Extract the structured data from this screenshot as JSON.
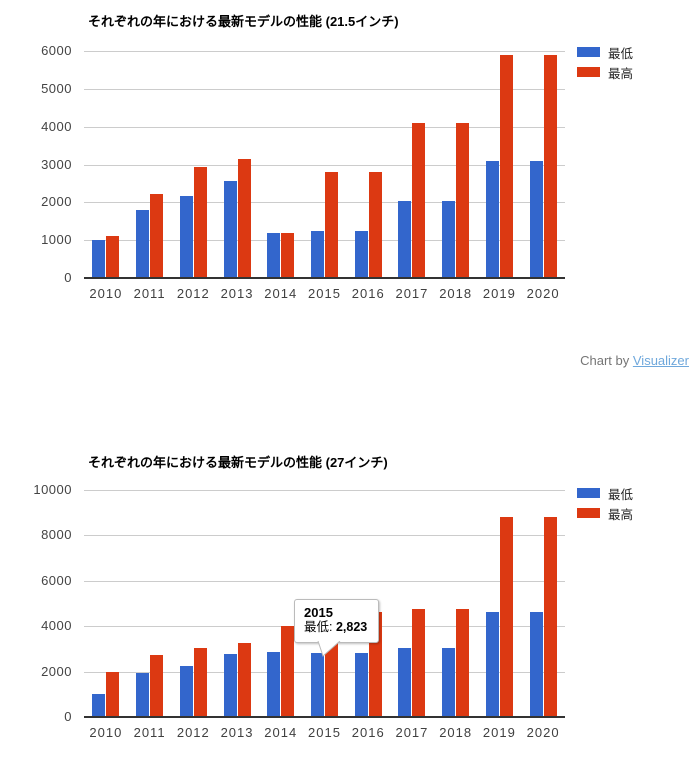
{
  "attribution": {
    "prefix": "Chart by ",
    "link_label": "Visualizer"
  },
  "chart_data": [
    {
      "type": "bar",
      "title": "それぞれの年における最新モデルの性能 (21.5インチ)",
      "categories": [
        "2010",
        "2011",
        "2012",
        "2013",
        "2014",
        "2015",
        "2016",
        "2017",
        "2018",
        "2019",
        "2020"
      ],
      "series": [
        {
          "name": "最低",
          "color": "#3366CC",
          "values": [
            1000,
            1790,
            2170,
            2570,
            1200,
            1240,
            1240,
            2030,
            2030,
            3090,
            3090
          ]
        },
        {
          "name": "最高",
          "color": "#DC3912",
          "values": [
            1110,
            2210,
            2930,
            3150,
            1200,
            2790,
            2790,
            4110,
            4110,
            5900,
            5900
          ]
        }
      ],
      "ylim": [
        0,
        6000
      ],
      "yticks": [
        0,
        1000,
        2000,
        3000,
        4000,
        5000,
        6000
      ],
      "grid": true,
      "legend_position": "right"
    },
    {
      "type": "bar",
      "title": "それぞれの年における最新モデルの性能 (27インチ)",
      "categories": [
        "2010",
        "2011",
        "2012",
        "2013",
        "2014",
        "2015",
        "2016",
        "2017",
        "2018",
        "2019",
        "2020"
      ],
      "series": [
        {
          "name": "最低",
          "color": "#3366CC",
          "values": [
            1000,
            1940,
            2260,
            2770,
            2860,
            2823,
            2823,
            3040,
            3040,
            4620,
            4620
          ]
        },
        {
          "name": "最高",
          "color": "#DC3912",
          "values": [
            2000,
            2740,
            3060,
            3260,
            4030,
            4630,
            4630,
            4740,
            4740,
            8810,
            8810
          ]
        }
      ],
      "ylim": [
        0,
        10000
      ],
      "yticks": [
        0,
        2000,
        4000,
        6000,
        8000,
        10000
      ],
      "grid": true,
      "legend_position": "right",
      "tooltip": {
        "year": "2015",
        "series_label": "最低: ",
        "value": "2,823",
        "category_index": 5
      }
    }
  ]
}
